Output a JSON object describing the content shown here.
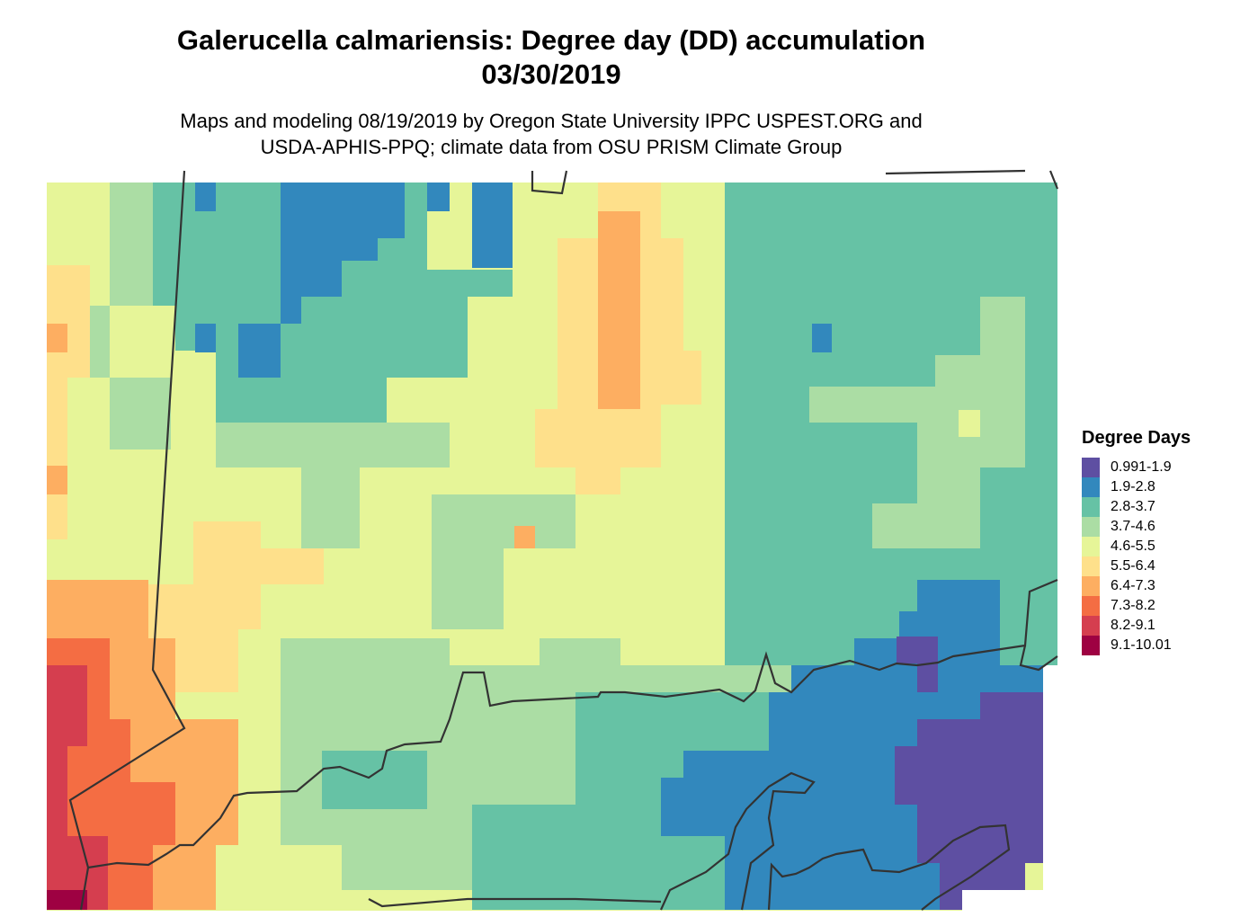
{
  "title": {
    "line1": "Galerucella calmariensis: Degree day (DD) accumulation",
    "line2": "03/30/2019"
  },
  "subtitle": {
    "line1": "Maps and modeling 08/19/2019 by Oregon State University IPPC USPEST.ORG and",
    "line2": "USDA-APHIS-PPQ; climate data from OSU PRISM Climate Group"
  },
  "legend": {
    "title": "Degree Days",
    "items": [
      {
        "label": "0.991-1.9",
        "color": "#5e4fa2"
      },
      {
        "label": "1.9-2.8",
        "color": "#3288bd"
      },
      {
        "label": "2.8-3.7",
        "color": "#66c2a5"
      },
      {
        "label": "3.7-4.6",
        "color": "#abdda4"
      },
      {
        "label": "4.6-5.5",
        "color": "#e6f598"
      },
      {
        "label": "5.5-6.4",
        "color": "#fee08b"
      },
      {
        "label": "6.4-7.3",
        "color": "#fdae61"
      },
      {
        "label": "7.3-8.2",
        "color": "#f46d43"
      },
      {
        "label": "8.2-9.1",
        "color": "#d53e4f"
      },
      {
        "label": "9.1-10.01",
        "color": "#9e0142"
      }
    ]
  }
}
